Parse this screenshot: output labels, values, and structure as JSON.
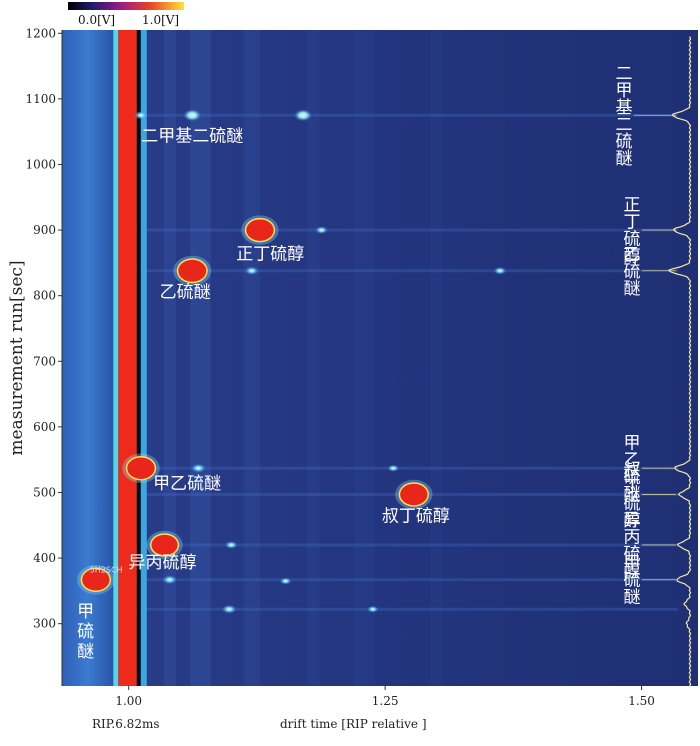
{
  "chart_data": {
    "type": "heatmap",
    "title": "",
    "xlabel": "drift time [RIP relative ]",
    "ylabel": "measurement run[sec]",
    "x_note": "RIP.6.82ms",
    "xlim": [
      0.935,
      1.555
    ],
    "ylim": [
      205,
      1205
    ],
    "x_ticks": [
      1.0,
      1.25,
      1.5
    ],
    "x_tick_labels": [
      "1.00",
      "1.25",
      "1.50"
    ],
    "y_ticks": [
      300,
      400,
      500,
      600,
      700,
      800,
      900,
      1000,
      1100,
      1200
    ],
    "colorbar": {
      "min_label": "0.0[V]",
      "max_label": "1.0[V]"
    },
    "colors": {
      "background": "#22337a",
      "rip": "#ee2a1a",
      "peak": "#e8261c",
      "spot": "#5fc8ff",
      "spectrum": "#f3e9a0"
    },
    "peaks": [
      {
        "x": 1.062,
        "y": 1075,
        "intensity": 0.62
      },
      {
        "x": 1.17,
        "y": 1075,
        "intensity": 0.6
      },
      {
        "x": 1.012,
        "y": 1075,
        "intensity": 0.3
      },
      {
        "x": 1.128,
        "y": 900,
        "intensity": 0.95
      },
      {
        "x": 1.188,
        "y": 900,
        "intensity": 0.25
      },
      {
        "x": 1.062,
        "y": 838,
        "intensity": 1.0
      },
      {
        "x": 1.12,
        "y": 838,
        "intensity": 0.3
      },
      {
        "x": 1.362,
        "y": 838,
        "intensity": 0.25
      },
      {
        "x": 1.012,
        "y": 537,
        "intensity": 0.95
      },
      {
        "x": 1.068,
        "y": 537,
        "intensity": 0.35
      },
      {
        "x": 1.258,
        "y": 537,
        "intensity": 0.2
      },
      {
        "x": 1.278,
        "y": 497,
        "intensity": 0.95
      },
      {
        "x": 1.035,
        "y": 420,
        "intensity": 0.85
      },
      {
        "x": 1.1,
        "y": 420,
        "intensity": 0.25
      },
      {
        "x": 0.968,
        "y": 367,
        "intensity": 0.95
      },
      {
        "x": 1.04,
        "y": 367,
        "intensity": 0.35
      },
      {
        "x": 1.098,
        "y": 322,
        "intensity": 0.35
      },
      {
        "x": 1.153,
        "y": 365,
        "intensity": 0.2
      },
      {
        "x": 1.238,
        "y": 322,
        "intensity": 0.18
      }
    ],
    "annotations": [
      {
        "text": "二甲基二硫醚",
        "x": 1.062,
        "y": 1035
      },
      {
        "text": "正丁硫醇",
        "x": 1.138,
        "y": 855
      },
      {
        "text": "乙硫醚",
        "x": 1.055,
        "y": 797
      },
      {
        "text": "甲乙硫醚",
        "x": 1.057,
        "y": 505
      },
      {
        "text": "叔丁硫醇",
        "x": 1.28,
        "y": 456
      },
      {
        "text": "异丙硫醇",
        "x": 1.033,
        "y": 385
      },
      {
        "text": "甲\n硫\n醚",
        "x": 0.958,
        "y": 310
      }
    ],
    "spectrum_labels": [
      {
        "text": "二甲基二硫醚",
        "y": 1075
      },
      {
        "text": "正丁硫醇",
        "y": 900
      },
      {
        "text": "乙硫醚",
        "y": 838
      },
      {
        "text": "甲乙硫醚",
        "y": 537
      },
      {
        "text": "叔丁硫醇",
        "y": 497
      },
      {
        "text": "异丙硫醇",
        "y": 420
      },
      {
        "text": "甲硫醚",
        "y": 367
      }
    ],
    "spectrum_peaks": [
      {
        "y": 1075,
        "height": 0.8
      },
      {
        "y": 900,
        "height": 0.75
      },
      {
        "y": 838,
        "height": 0.95
      },
      {
        "y": 537,
        "height": 0.7
      },
      {
        "y": 497,
        "height": 0.5
      },
      {
        "y": 420,
        "height": 0.55
      },
      {
        "y": 367,
        "height": 0.6
      },
      {
        "y": 330,
        "height": 0.25
      },
      {
        "y": 300,
        "height": 0.15
      }
    ],
    "small_note": "5H2SCH"
  }
}
